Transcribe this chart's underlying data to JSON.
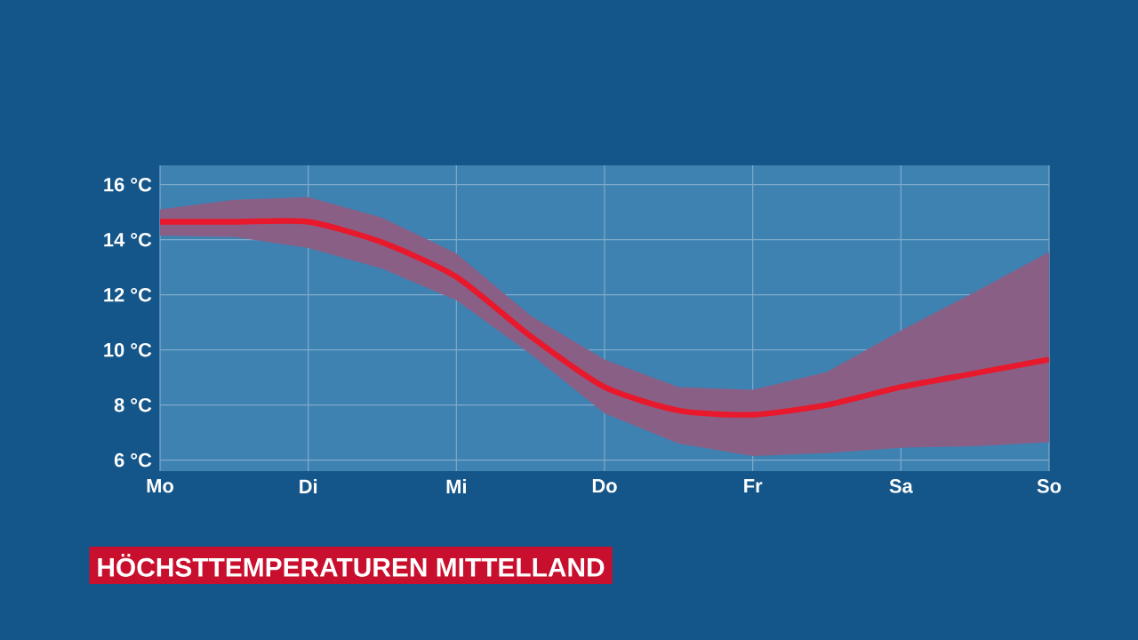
{
  "chart_data": {
    "type": "line",
    "title": "HÖCHSTTEMPERATUREN MITTELLAND",
    "categories": [
      "Mo",
      null,
      "Di",
      null,
      "Mi",
      null,
      "Do",
      null,
      "Fr",
      null,
      "Sa",
      null,
      "So"
    ],
    "ylim": [
      5.6,
      16.7
    ],
    "yticks": [
      {
        "value": 6,
        "label": "6 °C"
      },
      {
        "value": 8,
        "label": "8 °C"
      },
      {
        "value": 10,
        "label": "10 °C"
      },
      {
        "value": 12,
        "label": "12 °C"
      },
      {
        "value": 14,
        "label": "14 °C"
      },
      {
        "value": 16,
        "label": "16 °C"
      }
    ],
    "grid": true,
    "series": [
      {
        "color": "#e8192c",
        "values": [
          14.65,
          14.65,
          14.65,
          13.9,
          12.65,
          10.5,
          8.65,
          7.8,
          7.65,
          8.0,
          8.65,
          9.15,
          9.65
        ],
        "lower": [
          14.15,
          14.1,
          13.7,
          12.95,
          11.8,
          9.85,
          7.7,
          6.6,
          6.15,
          6.25,
          6.45,
          6.5,
          6.65
        ],
        "upper": [
          15.1,
          15.45,
          15.55,
          14.8,
          13.5,
          11.25,
          9.65,
          8.65,
          8.55,
          9.2,
          10.7,
          12.1,
          13.55
        ]
      }
    ]
  }
}
